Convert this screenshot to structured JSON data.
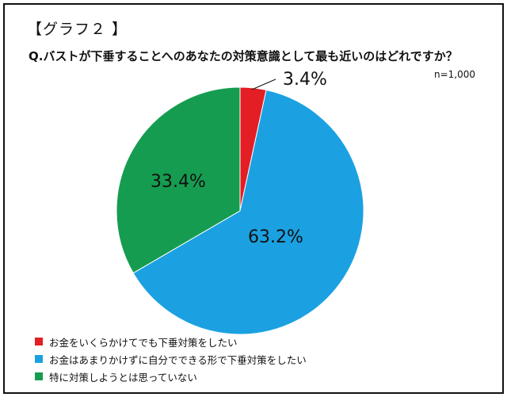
{
  "header": {
    "graph_label": "【グラフ２ 】",
    "question": "Q.バストが下垂することへのあなたの対策意識として最も近いのはどれですか？",
    "sample_size": "n=1,000"
  },
  "chart_data": {
    "type": "pie",
    "series": [
      {
        "name": "お金をいくらかけてでも下垂対策をしたい",
        "value": 3.4,
        "label": "3.4%",
        "color": "#e31e24"
      },
      {
        "name": "お金はあまりかけずに自分でできる形で下垂対策をしたい",
        "value": 63.2,
        "label": "63.2%",
        "color": "#1ba1e2"
      },
      {
        "name": "特に対策しようとは思っていない",
        "value": 33.4,
        "label": "33.4%",
        "color": "#169c50"
      }
    ],
    "legend_position": "bottom-left"
  }
}
